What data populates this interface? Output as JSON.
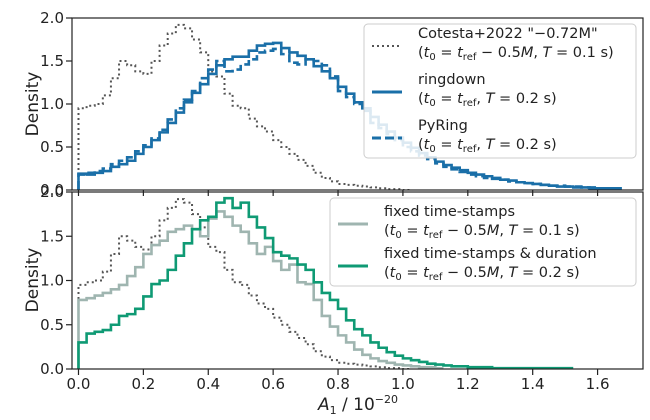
{
  "chart_data": [
    {
      "type": "line",
      "style": "step-histogram",
      "ylabel": "Density",
      "ylim": [
        0,
        2.0
      ],
      "yticks": [
        "0.0",
        "0.5",
        "1.0",
        "1.5",
        "2.0"
      ],
      "legend_position": "top-right",
      "series": [
        {
          "name": "Cotesta+2022 \"−0.72M\"",
          "sub": "(t0 = tref − 0.5M, T = 0.1 s)",
          "color": "#555555",
          "dash": "dotted",
          "x0": 0.0,
          "bw": 0.025,
          "values": [
            0.95,
            0.98,
            1.0,
            1.1,
            1.3,
            1.5,
            1.45,
            1.38,
            1.35,
            1.5,
            1.68,
            1.82,
            1.92,
            1.88,
            1.75,
            1.6,
            1.38,
            1.32,
            1.12,
            0.98,
            0.95,
            0.83,
            0.74,
            0.68,
            0.58,
            0.5,
            0.42,
            0.35,
            0.28,
            0.2,
            0.14,
            0.1,
            0.07,
            0.06,
            0.05,
            0.04,
            0.03,
            0.02,
            0.01,
            0.01,
            0.0
          ]
        },
        {
          "name": "ringdown",
          "sub": "(t0 = tref, T = 0.2 s)",
          "color": "#1a6fa8",
          "dash": "solid",
          "x0": 0.0,
          "bw": 0.025,
          "values": [
            0.19,
            0.18,
            0.2,
            0.22,
            0.27,
            0.3,
            0.34,
            0.42,
            0.5,
            0.58,
            0.67,
            0.78,
            0.9,
            1.02,
            1.13,
            1.23,
            1.35,
            1.45,
            1.52,
            1.55,
            1.55,
            1.62,
            1.68,
            1.7,
            1.71,
            1.65,
            1.6,
            1.56,
            1.52,
            1.44,
            1.38,
            1.3,
            1.2,
            1.12,
            1.02,
            0.95,
            0.85,
            0.76,
            0.68,
            0.61,
            0.55,
            0.49,
            0.43,
            0.38,
            0.33,
            0.29,
            0.26,
            0.23,
            0.2,
            0.18,
            0.16,
            0.14,
            0.12,
            0.11,
            0.09,
            0.08,
            0.07,
            0.06,
            0.05,
            0.04,
            0.04,
            0.03,
            0.03,
            0.02,
            0.02,
            0.02,
            0.02
          ]
        },
        {
          "name": "PyRing",
          "sub": "(t0 = tref, T = 0.2 s)",
          "color": "#1a6fa8",
          "dash": "dashed",
          "x0": 0.0,
          "bw": 0.025,
          "values": [
            0.18,
            0.2,
            0.22,
            0.25,
            0.3,
            0.34,
            0.38,
            0.45,
            0.52,
            0.6,
            0.7,
            0.82,
            0.95,
            1.05,
            1.15,
            1.3,
            1.4,
            1.5,
            1.38,
            1.4,
            1.46,
            1.52,
            1.6,
            1.62,
            1.64,
            1.58,
            1.48,
            1.46,
            1.52,
            1.5,
            1.45,
            1.32,
            1.15,
            1.08,
            1.0,
            0.92,
            0.78,
            0.72,
            0.65,
            0.58,
            0.5,
            0.45,
            0.4,
            0.36,
            0.31,
            0.27,
            0.24,
            0.21,
            0.18,
            0.16,
            0.14,
            0.13,
            0.12,
            0.1,
            0.09,
            0.08,
            0.07,
            0.06,
            0.05,
            0.05,
            0.04,
            0.04,
            0.03,
            0.03,
            0.02,
            0.02,
            0.02
          ]
        }
      ]
    },
    {
      "type": "line",
      "style": "step-histogram",
      "xlabel": "A1 / 10⁻²⁰",
      "ylabel": "Density",
      "xlim": [
        -0.02,
        1.74
      ],
      "ylim": [
        0,
        2.0
      ],
      "xticks": [
        "0.0",
        "0.2",
        "0.4",
        "0.6",
        "0.8",
        "1.0",
        "1.2",
        "1.4",
        "1.6"
      ],
      "yticks": [
        "0.0",
        "0.5",
        "1.0",
        "1.5",
        "2.0"
      ],
      "legend_position": "top-right",
      "series": [
        {
          "name": "Cotesta+2022 \"−0.72M\"",
          "color": "#555555",
          "dash": "dotted",
          "in_legend": false,
          "x0": 0.0,
          "bw": 0.025,
          "values": [
            0.95,
            0.98,
            1.0,
            1.1,
            1.3,
            1.5,
            1.45,
            1.38,
            1.35,
            1.5,
            1.68,
            1.82,
            1.92,
            1.88,
            1.75,
            1.6,
            1.38,
            1.32,
            1.12,
            0.98,
            0.95,
            0.83,
            0.74,
            0.68,
            0.58,
            0.5,
            0.42,
            0.35,
            0.28,
            0.2,
            0.14,
            0.1,
            0.07,
            0.06,
            0.05,
            0.04,
            0.03,
            0.02,
            0.01,
            0.01,
            0.0
          ]
        },
        {
          "name": "fixed time-stamps",
          "sub": "(t0 = tref − 0.5M, T = 0.1 s)",
          "color": "#9fb5b0",
          "dash": "solid",
          "in_legend": true,
          "x0": 0.0,
          "bw": 0.025,
          "values": [
            0.78,
            0.8,
            0.83,
            0.86,
            0.9,
            0.95,
            1.05,
            1.15,
            1.3,
            1.4,
            1.45,
            1.55,
            1.58,
            1.62,
            1.58,
            1.5,
            1.7,
            1.78,
            1.72,
            1.62,
            1.55,
            1.42,
            1.3,
            1.38,
            1.22,
            1.12,
            1.18,
            0.98,
            0.96,
            0.78,
            0.6,
            0.48,
            0.38,
            0.3,
            0.22,
            0.16,
            0.12,
            0.09,
            0.07,
            0.05,
            0.04,
            0.03,
            0.02,
            0.02,
            0.01
          ]
        },
        {
          "name": "fixed time-stamps & duration",
          "sub": "(t0 = tref − 0.5M, T = 0.2 s)",
          "color": "#0f9a74",
          "dash": "solid",
          "in_legend": true,
          "x0": 0.0,
          "bw": 0.025,
          "values": [
            0.3,
            0.4,
            0.42,
            0.44,
            0.5,
            0.6,
            0.62,
            0.68,
            0.82,
            0.96,
            1.0,
            1.12,
            1.28,
            1.42,
            1.58,
            1.68,
            1.72,
            1.88,
            1.93,
            1.82,
            1.88,
            1.72,
            1.6,
            1.48,
            1.32,
            1.28,
            1.25,
            1.18,
            1.12,
            0.98,
            0.86,
            0.78,
            0.68,
            0.55,
            0.45,
            0.38,
            0.3,
            0.24,
            0.19,
            0.15,
            0.12,
            0.1,
            0.08,
            0.06,
            0.05,
            0.04,
            0.03,
            0.03,
            0.02,
            0.02,
            0.02,
            0.01,
            0.01,
            0.01,
            0.01,
            0.01,
            0.01,
            0.01,
            0.01,
            0.01,
            0.01
          ]
        }
      ]
    }
  ]
}
